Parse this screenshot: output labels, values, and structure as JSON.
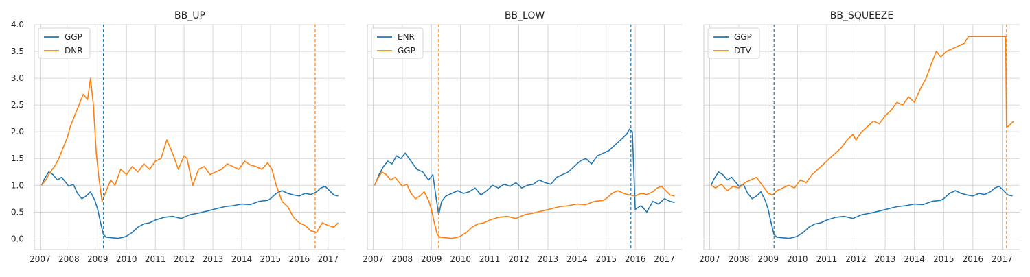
{
  "chart_data": [
    {
      "type": "line",
      "title": "BB_UP",
      "xlabel": "",
      "ylabel": "",
      "xlim": [
        2006.8,
        2017.6
      ],
      "ylim": [
        -0.2,
        4.0
      ],
      "x_ticks": [
        "2007",
        "2008",
        "2009",
        "2010",
        "2011",
        "2012",
        "2013",
        "2014",
        "2015",
        "2016",
        "2017"
      ],
      "y_ticks": [
        "0.0",
        "0.5",
        "1.0",
        "1.5",
        "2.0",
        "2.5",
        "3.0",
        "3.5",
        "4.0"
      ],
      "grid": true,
      "legend": "top-left",
      "vlines": [
        {
          "x": 2009.2,
          "color": "#1f77b4"
        },
        {
          "x": 2016.55,
          "color": "#ff7f0e"
        }
      ],
      "series": [
        {
          "name": "GGP",
          "color": "#1f77b4",
          "x": [
            2007.05,
            2007.15,
            2007.3,
            2007.45,
            2007.6,
            2007.75,
            2007.9,
            2008.0,
            2008.15,
            2008.3,
            2008.45,
            2008.6,
            2008.75,
            2008.9,
            2009.0,
            2009.1,
            2009.2,
            2009.3,
            2009.5,
            2009.7,
            2009.9,
            2010.0,
            2010.2,
            2010.4,
            2010.6,
            2010.8,
            2011.0,
            2011.3,
            2011.6,
            2011.9,
            2012.2,
            2012.5,
            2012.8,
            2013.1,
            2013.4,
            2013.7,
            2014.0,
            2014.3,
            2014.6,
            2014.9,
            2015.0,
            2015.2,
            2015.4,
            2015.6,
            2015.8,
            2016.0,
            2016.2,
            2016.4,
            2016.6,
            2016.75,
            2016.9,
            2017.05,
            2017.2,
            2017.35
          ],
          "y": [
            1.0,
            1.12,
            1.25,
            1.2,
            1.1,
            1.15,
            1.05,
            0.98,
            1.02,
            0.85,
            0.75,
            0.8,
            0.88,
            0.72,
            0.55,
            0.3,
            0.08,
            0.03,
            0.02,
            0.01,
            0.03,
            0.05,
            0.12,
            0.22,
            0.28,
            0.3,
            0.35,
            0.4,
            0.42,
            0.38,
            0.45,
            0.48,
            0.52,
            0.56,
            0.6,
            0.62,
            0.65,
            0.64,
            0.7,
            0.72,
            0.75,
            0.85,
            0.9,
            0.85,
            0.82,
            0.8,
            0.85,
            0.83,
            0.88,
            0.95,
            0.98,
            0.9,
            0.82,
            0.8
          ]
        },
        {
          "name": "DNR",
          "color": "#ff7f0e",
          "x": [
            2007.05,
            2007.2,
            2007.35,
            2007.5,
            2007.65,
            2007.8,
            2007.95,
            2008.05,
            2008.2,
            2008.35,
            2008.5,
            2008.65,
            2008.75,
            2008.85,
            2008.95,
            2009.05,
            2009.15,
            2009.3,
            2009.45,
            2009.6,
            2009.8,
            2010.0,
            2010.2,
            2010.4,
            2010.6,
            2010.8,
            2011.0,
            2011.2,
            2011.4,
            2011.6,
            2011.8,
            2012.0,
            2012.1,
            2012.3,
            2012.5,
            2012.7,
            2012.9,
            2013.1,
            2013.3,
            2013.5,
            2013.7,
            2013.9,
            2014.1,
            2014.3,
            2014.5,
            2014.7,
            2014.9,
            2015.05,
            2015.2,
            2015.4,
            2015.6,
            2015.8,
            2016.0,
            2016.2,
            2016.4,
            2016.6,
            2016.8,
            2017.0,
            2017.2,
            2017.35
          ],
          "y": [
            1.0,
            1.1,
            1.25,
            1.35,
            1.5,
            1.7,
            1.9,
            2.1,
            2.3,
            2.5,
            2.7,
            2.6,
            3.0,
            2.5,
            1.6,
            1.1,
            0.7,
            0.9,
            1.1,
            1.0,
            1.3,
            1.2,
            1.35,
            1.25,
            1.4,
            1.3,
            1.45,
            1.5,
            1.85,
            1.6,
            1.3,
            1.55,
            1.5,
            1.0,
            1.3,
            1.35,
            1.2,
            1.25,
            1.3,
            1.4,
            1.35,
            1.3,
            1.45,
            1.38,
            1.35,
            1.3,
            1.42,
            1.3,
            1.0,
            0.7,
            0.6,
            0.4,
            0.3,
            0.25,
            0.15,
            0.12,
            0.3,
            0.25,
            0.22,
            0.3
          ]
        }
      ]
    },
    {
      "type": "line",
      "title": "BB_LOW",
      "xlabel": "",
      "ylabel": "",
      "xlim": [
        2006.8,
        2017.6
      ],
      "ylim": [
        -0.2,
        4.0
      ],
      "x_ticks": [
        "2007",
        "2008",
        "2009",
        "2010",
        "2011",
        "2012",
        "2013",
        "2014",
        "2015",
        "2016",
        "2017"
      ],
      "grid": true,
      "legend": "top-left",
      "vlines": [
        {
          "x": 2009.25,
          "color": "#ff7f0e"
        },
        {
          "x": 2015.85,
          "color": "#1f77b4"
        }
      ],
      "series": [
        {
          "name": "ENR",
          "color": "#1f77b4",
          "x": [
            2007.05,
            2007.2,
            2007.35,
            2007.5,
            2007.65,
            2007.8,
            2007.95,
            2008.1,
            2008.3,
            2008.5,
            2008.7,
            2008.9,
            2009.05,
            2009.15,
            2009.25,
            2009.35,
            2009.5,
            2009.7,
            2009.9,
            2010.1,
            2010.3,
            2010.5,
            2010.7,
            2010.9,
            2011.1,
            2011.3,
            2011.5,
            2011.7,
            2011.9,
            2012.1,
            2012.3,
            2012.5,
            2012.7,
            2012.9,
            2013.1,
            2013.3,
            2013.5,
            2013.7,
            2013.9,
            2014.1,
            2014.3,
            2014.5,
            2014.7,
            2014.9,
            2015.1,
            2015.3,
            2015.5,
            2015.7,
            2015.8,
            2015.9,
            2016.0,
            2016.2,
            2016.4,
            2016.6,
            2016.8,
            2017.0,
            2017.2,
            2017.35
          ],
          "y": [
            1.0,
            1.2,
            1.35,
            1.45,
            1.4,
            1.55,
            1.5,
            1.6,
            1.45,
            1.3,
            1.25,
            1.1,
            1.2,
            0.8,
            0.45,
            0.7,
            0.8,
            0.85,
            0.9,
            0.85,
            0.88,
            0.95,
            0.82,
            0.9,
            1.0,
            0.95,
            1.02,
            0.98,
            1.05,
            0.95,
            1.0,
            1.02,
            1.1,
            1.05,
            1.02,
            1.15,
            1.2,
            1.25,
            1.35,
            1.45,
            1.5,
            1.4,
            1.55,
            1.6,
            1.65,
            1.75,
            1.85,
            1.95,
            2.05,
            2.0,
            0.55,
            0.62,
            0.5,
            0.7,
            0.65,
            0.75,
            0.7,
            0.68
          ]
        },
        {
          "name": "GGP",
          "color": "#ff7f0e",
          "x": [
            2007.05,
            2007.15,
            2007.3,
            2007.45,
            2007.6,
            2007.75,
            2007.9,
            2008.0,
            2008.15,
            2008.3,
            2008.45,
            2008.6,
            2008.75,
            2008.9,
            2009.0,
            2009.1,
            2009.2,
            2009.3,
            2009.5,
            2009.7,
            2009.9,
            2010.0,
            2010.2,
            2010.4,
            2010.6,
            2010.8,
            2011.0,
            2011.3,
            2011.6,
            2011.9,
            2012.2,
            2012.5,
            2012.8,
            2013.1,
            2013.4,
            2013.7,
            2014.0,
            2014.3,
            2014.6,
            2014.9,
            2015.0,
            2015.2,
            2015.4,
            2015.6,
            2015.8,
            2016.0,
            2016.2,
            2016.4,
            2016.6,
            2016.75,
            2016.9,
            2017.05,
            2017.2,
            2017.35
          ],
          "y": [
            1.0,
            1.12,
            1.25,
            1.2,
            1.1,
            1.15,
            1.05,
            0.98,
            1.02,
            0.85,
            0.75,
            0.8,
            0.88,
            0.72,
            0.55,
            0.3,
            0.08,
            0.03,
            0.02,
            0.01,
            0.03,
            0.05,
            0.12,
            0.22,
            0.28,
            0.3,
            0.35,
            0.4,
            0.42,
            0.38,
            0.45,
            0.48,
            0.52,
            0.56,
            0.6,
            0.62,
            0.65,
            0.64,
            0.7,
            0.72,
            0.75,
            0.85,
            0.9,
            0.85,
            0.82,
            0.8,
            0.85,
            0.83,
            0.88,
            0.95,
            0.98,
            0.9,
            0.82,
            0.8
          ]
        }
      ]
    },
    {
      "type": "line",
      "title": "BB_SQUEEZE",
      "xlabel": "",
      "ylabel": "",
      "xlim": [
        2006.8,
        2017.6
      ],
      "ylim": [
        -0.2,
        4.0
      ],
      "x_ticks": [
        "2007",
        "2008",
        "2009",
        "2010",
        "2011",
        "2012",
        "2013",
        "2014",
        "2015",
        "2016",
        "2017"
      ],
      "grid": true,
      "legend": "top-left",
      "vlines": [
        {
          "x": 2009.2,
          "color": "#1f77b4"
        },
        {
          "x": 2017.15,
          "color": "#ff7f0e"
        }
      ],
      "series": [
        {
          "name": "GGP",
          "color": "#1f77b4",
          "x": [
            2007.05,
            2007.15,
            2007.3,
            2007.45,
            2007.6,
            2007.75,
            2007.9,
            2008.0,
            2008.15,
            2008.3,
            2008.45,
            2008.6,
            2008.75,
            2008.9,
            2009.0,
            2009.1,
            2009.2,
            2009.3,
            2009.5,
            2009.7,
            2009.9,
            2010.0,
            2010.2,
            2010.4,
            2010.6,
            2010.8,
            2011.0,
            2011.3,
            2011.6,
            2011.9,
            2012.2,
            2012.5,
            2012.8,
            2013.1,
            2013.4,
            2013.7,
            2014.0,
            2014.3,
            2014.6,
            2014.9,
            2015.0,
            2015.2,
            2015.4,
            2015.6,
            2015.8,
            2016.0,
            2016.2,
            2016.4,
            2016.6,
            2016.75,
            2016.9,
            2017.05,
            2017.2,
            2017.35
          ],
          "y": [
            1.0,
            1.12,
            1.25,
            1.2,
            1.1,
            1.15,
            1.05,
            0.98,
            1.02,
            0.85,
            0.75,
            0.8,
            0.88,
            0.72,
            0.55,
            0.3,
            0.08,
            0.03,
            0.02,
            0.01,
            0.03,
            0.05,
            0.12,
            0.22,
            0.28,
            0.3,
            0.35,
            0.4,
            0.42,
            0.38,
            0.45,
            0.48,
            0.52,
            0.56,
            0.6,
            0.62,
            0.65,
            0.64,
            0.7,
            0.72,
            0.75,
            0.85,
            0.9,
            0.85,
            0.82,
            0.8,
            0.85,
            0.83,
            0.88,
            0.95,
            0.98,
            0.9,
            0.82,
            0.8
          ]
        },
        {
          "name": "DTV",
          "color": "#ff7f0e",
          "x": [
            2007.05,
            2007.2,
            2007.4,
            2007.6,
            2007.8,
            2008.0,
            2008.2,
            2008.4,
            2008.6,
            2008.8,
            2009.0,
            2009.15,
            2009.3,
            2009.5,
            2009.7,
            2009.9,
            2010.1,
            2010.3,
            2010.5,
            2010.7,
            2010.9,
            2011.1,
            2011.3,
            2011.5,
            2011.7,
            2011.9,
            2012.0,
            2012.2,
            2012.4,
            2012.6,
            2012.8,
            2013.0,
            2013.2,
            2013.4,
            2013.6,
            2013.8,
            2014.0,
            2014.2,
            2014.4,
            2014.6,
            2014.75,
            2014.9,
            2015.1,
            2015.3,
            2015.5,
            2015.7,
            2015.85,
            2016.0,
            2016.5,
            2017.0,
            2017.12,
            2017.15,
            2017.2,
            2017.3,
            2017.4
          ],
          "y": [
            1.0,
            0.95,
            1.02,
            0.9,
            0.98,
            0.95,
            1.05,
            1.1,
            1.15,
            1.0,
            0.85,
            0.82,
            0.9,
            0.95,
            1.0,
            0.95,
            1.1,
            1.05,
            1.2,
            1.3,
            1.4,
            1.5,
            1.6,
            1.7,
            1.85,
            1.95,
            1.85,
            2.0,
            2.1,
            2.2,
            2.15,
            2.3,
            2.4,
            2.55,
            2.5,
            2.65,
            2.55,
            2.8,
            3.0,
            3.3,
            3.5,
            3.4,
            3.5,
            3.55,
            3.6,
            3.65,
            3.78,
            3.78,
            3.78,
            3.78,
            3.78,
            2.1,
            2.1,
            2.15,
            2.2
          ]
        }
      ]
    }
  ]
}
